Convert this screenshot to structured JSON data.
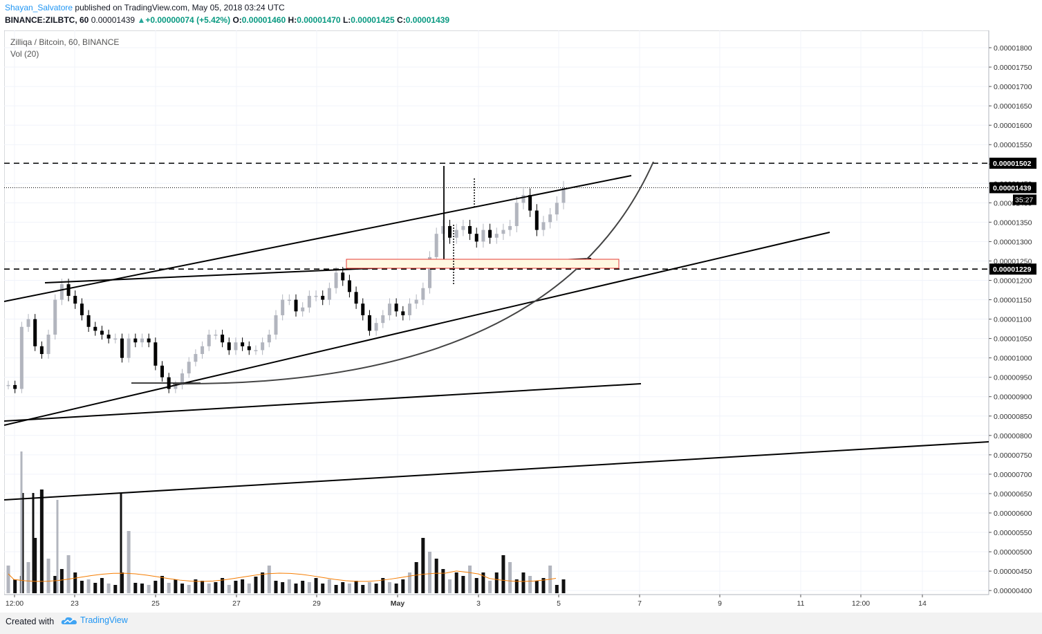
{
  "header": {
    "author": "Shayan_Salvatore",
    "published": " published on TradingView.com, May 05, 2018 03:24 UTC"
  },
  "info": {
    "symbol": "BINANCE:ZILBTC, 60",
    "last": "0.00001439",
    "change": "+0.00000074 (+5.42%)",
    "o_label": "O:",
    "o": "0.00001460",
    "h_label": "H:",
    "h": "0.00001470",
    "l_label": "L:",
    "l": "0.00001425",
    "c_label": "C:",
    "c": "0.00001439"
  },
  "legend": {
    "title": "Zilliqa / Bitcoin, 60, BINANCE",
    "volume": "Vol (20)"
  },
  "footer": {
    "created": "Created with",
    "brand": "TradingView"
  },
  "colors": {
    "up_candle": "#b2b5be",
    "down_candle": "#000000",
    "volume_ma": "#f57c00",
    "highlight_box_border": "#e53935",
    "highlight_box_fill": "#fff8e1",
    "link": "#2196f3",
    "price_change": "#089981"
  },
  "chart_data": {
    "type": "candlestick",
    "title": "Zilliqa / Bitcoin, 60, BINANCE",
    "y_axis": {
      "ylim": [
        3.9e-06,
        1.85e-05
      ],
      "ticks": [
        "0.00001800",
        "0.00001750",
        "0.00001700",
        "0.00001650",
        "0.00001600",
        "0.00001550",
        "0.00001500",
        "0.00001450",
        "0.00001400",
        "0.00001350",
        "0.00001300",
        "0.00001250",
        "0.00001200",
        "0.00001150",
        "0.00001100",
        "0.00001050",
        "0.00001000",
        "0.00000950",
        "0.00000900",
        "0.00000850",
        "0.00000800",
        "0.00000750",
        "0.00000700",
        "0.00000650",
        "0.00000600",
        "0.00000550",
        "0.00000500",
        "0.00000450",
        "0.00000400"
      ]
    },
    "price_labels": [
      {
        "value": "0.00001502",
        "style": "dashed-line"
      },
      {
        "value": "0.00001439",
        "style": "current-price"
      },
      {
        "value": "0.00001229",
        "style": "dashed-line"
      }
    ],
    "countdown": "35:27",
    "x_axis": {
      "labels": [
        "12:00",
        "23",
        "25",
        "27",
        "29",
        "May",
        "3",
        "5",
        "7",
        "9",
        "11",
        "12:00",
        "14"
      ]
    },
    "price_series": [
      [
        0,
        9.3e-06
      ],
      [
        1,
        9.2e-06
      ],
      [
        2,
        1.08e-05
      ],
      [
        3,
        1.1e-05
      ],
      [
        4,
        1.03e-05
      ],
      [
        5,
        1.01e-05
      ],
      [
        6,
        1.06e-05
      ],
      [
        7,
        1.15e-05
      ],
      [
        8,
        1.19e-05
      ],
      [
        9,
        1.16e-05
      ],
      [
        10,
        1.14e-05
      ],
      [
        11,
        1.11e-05
      ],
      [
        12,
        1.08e-05
      ],
      [
        13,
        1.07e-05
      ],
      [
        14,
        1.06e-05
      ],
      [
        15,
        1.05e-05
      ],
      [
        16,
        1.05e-05
      ],
      [
        17,
        1e-05
      ],
      [
        18,
        1.05e-05
      ],
      [
        19,
        1.04e-05
      ],
      [
        20,
        1.05e-05
      ],
      [
        21,
        1.04e-05
      ],
      [
        22,
        9.8e-06
      ],
      [
        23,
        9.5e-06
      ],
      [
        24,
        9.2e-06
      ],
      [
        25,
        9.3e-06
      ],
      [
        26,
        9.6e-06
      ],
      [
        27,
        9.9e-06
      ],
      [
        28,
        1.01e-05
      ],
      [
        29,
        1.03e-05
      ],
      [
        30,
        1.06e-05
      ],
      [
        31,
        1.06e-05
      ],
      [
        32,
        1.04e-05
      ],
      [
        33,
        1.02e-05
      ],
      [
        34,
        1.04e-05
      ],
      [
        35,
        1.03e-05
      ],
      [
        36,
        1.02e-05
      ],
      [
        37,
        1.02e-05
      ],
      [
        38,
        1.04e-05
      ],
      [
        39,
        1.06e-05
      ],
      [
        40,
        1.11e-05
      ],
      [
        41,
        1.15e-05
      ],
      [
        42,
        1.15e-05
      ],
      [
        43,
        1.12e-05
      ],
      [
        44,
        1.13e-05
      ],
      [
        45,
        1.16e-05
      ],
      [
        46,
        1.16e-05
      ],
      [
        47,
        1.15e-05
      ],
      [
        48,
        1.18e-05
      ],
      [
        49,
        1.22e-05
      ],
      [
        50,
        1.2e-05
      ],
      [
        51,
        1.17e-05
      ],
      [
        52,
        1.14e-05
      ],
      [
        53,
        1.11e-05
      ],
      [
        54,
        1.07e-05
      ],
      [
        55,
        1.09e-05
      ],
      [
        56,
        1.11e-05
      ],
      [
        57,
        1.14e-05
      ],
      [
        58,
        1.12e-05
      ],
      [
        59,
        1.11e-05
      ],
      [
        60,
        1.14e-05
      ],
      [
        61,
        1.15e-05
      ],
      [
        62,
        1.18e-05
      ],
      [
        63,
        1.26e-05
      ],
      [
        64,
        1.32e-05
      ],
      [
        65,
        1.34e-05
      ],
      [
        66,
        1.31e-05
      ],
      [
        67,
        1.33e-05
      ],
      [
        68,
        1.34e-05
      ],
      [
        69,
        1.32e-05
      ],
      [
        70,
        1.3e-05
      ],
      [
        71,
        1.33e-05
      ],
      [
        72,
        1.31e-05
      ],
      [
        73,
        1.32e-05
      ],
      [
        74,
        1.33e-05
      ],
      [
        75,
        1.34e-05
      ],
      [
        76,
        1.4e-05
      ],
      [
        77,
        1.42e-05
      ],
      [
        78,
        1.38e-05
      ],
      [
        79,
        1.33e-05
      ],
      [
        80,
        1.35e-05
      ],
      [
        81,
        1.37e-05
      ],
      [
        82,
        1.4e-05
      ],
      [
        83,
        1.439e-05
      ]
    ]
  }
}
